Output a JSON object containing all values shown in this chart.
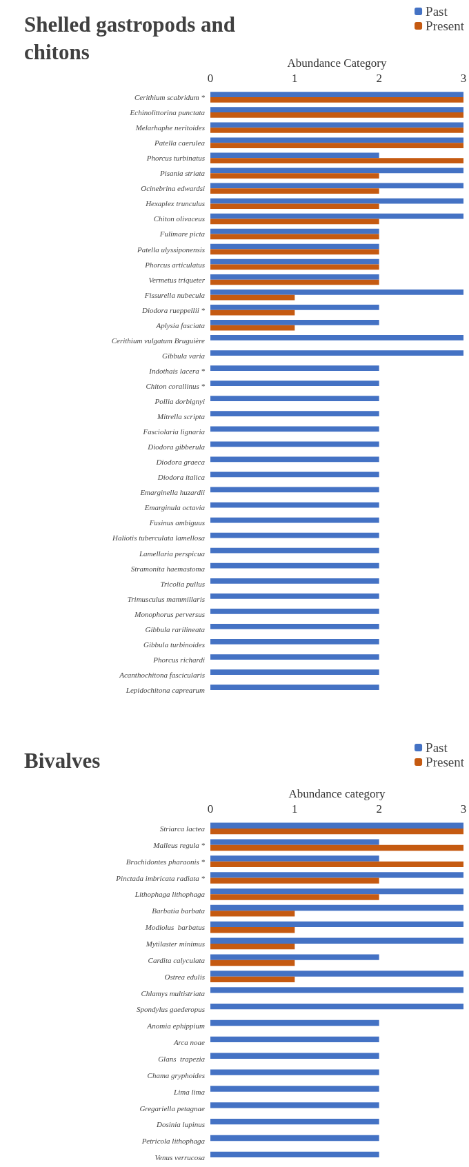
{
  "chart_data": [
    {
      "type": "bar",
      "orientation": "horizontal",
      "title": "Shelled gastropods and\nchitons",
      "xlabel": "Abundance Category",
      "xlim": [
        0,
        3
      ],
      "xticks": [
        0,
        1,
        2,
        3
      ],
      "grid": false,
      "legend": "top right",
      "categories": [
        "Cerithium scabridum *",
        "Echinolittorina punctata",
        "Melarhaphe neritoides",
        "Patella caerulea",
        "Phorcus turbinatus",
        "Pisania striata",
        "Ocinebrina edwardsi",
        "Hexaplex trunculus",
        "Chiton olivaceus",
        "Fulimare picta",
        "Patella ulyssiponensis",
        "Phorcus articulatus",
        "Vermetus triqueter",
        "Fissurella nubecula",
        "Diodora rueppellii *",
        "Aplysia fasciata",
        "Cerithium vulgatum Bruguière",
        "Gibbula varia",
        "Indothais lacera *",
        "Chiton corallinus *",
        "Pollia dorbignyi",
        "Mitrella scripta",
        "Fasciolaria lignaria",
        "Diodora gibberula",
        "Diodora graeca",
        "Diodora italica",
        "Emarginella huzardii",
        "Emarginula octavia",
        "Fusinus ambiguus",
        "Haliotis tuberculata lamellosa",
        "Lamellaria perspicua",
        "Stramonita haemastoma",
        "Tricolia pullus",
        "Trimusculus mammillaris",
        "Monophorus perversus",
        "Gibbula rarilineata",
        "Gibbula turbinoides",
        "Phorcus richardi",
        "Acanthochitona fascicularis",
        "Lepidochitona caprearum"
      ],
      "series": [
        {
          "name": "Past",
          "color": "#4472c4",
          "values": [
            3,
            3,
            3,
            3,
            2,
            3,
            3,
            3,
            3,
            2,
            2,
            2,
            2,
            3,
            2,
            2,
            3,
            3,
            2,
            2,
            2,
            2,
            2,
            2,
            2,
            2,
            2,
            2,
            2,
            2,
            2,
            2,
            2,
            2,
            2,
            2,
            2,
            2,
            2,
            2
          ]
        },
        {
          "name": "Present",
          "color": "#c55a11",
          "values": [
            3,
            3,
            3,
            3,
            3,
            2,
            2,
            2,
            2,
            2,
            2,
            2,
            2,
            1,
            1,
            1,
            null,
            null,
            null,
            null,
            null,
            null,
            null,
            null,
            null,
            null,
            null,
            null,
            null,
            null,
            null,
            null,
            null,
            null,
            null,
            null,
            null,
            null,
            null,
            null
          ]
        }
      ]
    },
    {
      "type": "bar",
      "orientation": "horizontal",
      "title": "Bivalves",
      "xlabel": "Abundance category",
      "xlim": [
        0,
        3
      ],
      "xticks": [
        0,
        1,
        2,
        3
      ],
      "grid": false,
      "legend": "top right",
      "categories": [
        "Striarca lactea",
        "Malleus regula *",
        "Brachidontes pharaonis *",
        "Pinctada imbricata radiata *",
        "Lithophaga lithophaga",
        "Barbatia barbata",
        "Modiolus  barbatus",
        "Mytilaster minimus",
        "Cardita calyculata",
        "Ostrea edulis",
        "Chlamys multistriata",
        "Spondylus gaederopus",
        "Anomia ephippium",
        "Arca noae",
        "Glans  trapezia",
        "Chama gryphoides",
        "Lima lima",
        "Gregariella petagnae",
        "Dosinia lupinus",
        "Petricola lithophaga",
        "Venus verrucosa"
      ],
      "series": [
        {
          "name": "Past",
          "color": "#4472c4",
          "values": [
            3,
            2,
            2,
            3,
            3,
            3,
            3,
            3,
            2,
            3,
            3,
            3,
            2,
            2,
            2,
            2,
            2,
            2,
            2,
            2,
            2
          ]
        },
        {
          "name": "Present",
          "color": "#c55a11",
          "values": [
            3,
            3,
            3,
            2,
            2,
            1,
            1,
            1,
            1,
            1,
            null,
            null,
            null,
            null,
            null,
            null,
            null,
            null,
            null,
            null,
            null
          ]
        }
      ]
    }
  ]
}
